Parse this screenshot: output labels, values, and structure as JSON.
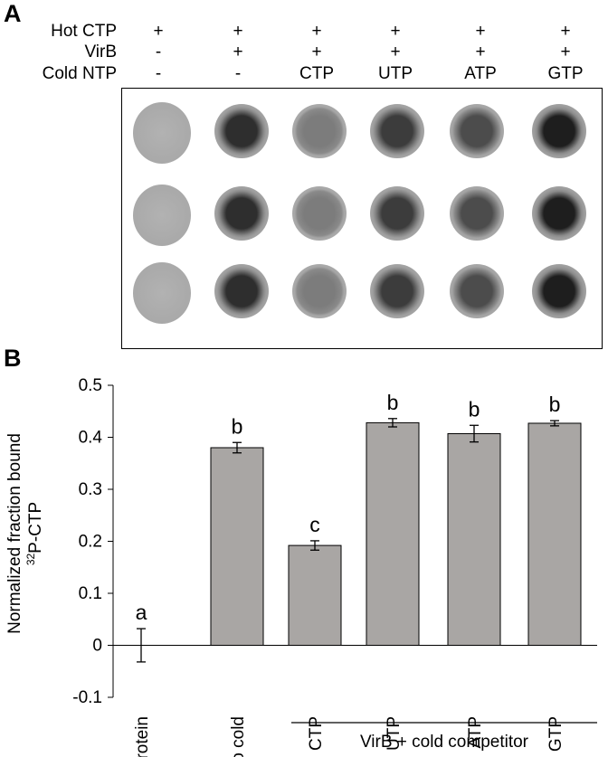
{
  "panel_a": {
    "letter": "A",
    "row_labels": [
      "Hot CTP",
      "VirB",
      "Cold NTP"
    ],
    "columns": [
      {
        "hot_ctp": "+",
        "virb": "-",
        "cold_ntp": "-"
      },
      {
        "hot_ctp": "+",
        "virb": "+",
        "cold_ntp": "-"
      },
      {
        "hot_ctp": "+",
        "virb": "+",
        "cold_ntp": "CTP"
      },
      {
        "hot_ctp": "+",
        "virb": "+",
        "cold_ntp": "UTP"
      },
      {
        "hot_ctp": "+",
        "virb": "+",
        "cold_ntp": "ATP"
      },
      {
        "hot_ctp": "+",
        "virb": "+",
        "cold_ntp": "GTP"
      }
    ]
  },
  "panel_b": {
    "letter": "B"
  },
  "chart_data": {
    "type": "bar",
    "title": "",
    "xlabel": "",
    "ylabel_line1": "Normalized fraction bound",
    "ylabel_line2_sup": "32",
    "ylabel_line2_rest": "P-CTP",
    "categories": [
      "no protein",
      "no cold",
      "CTP",
      "UTP",
      "ATP",
      "GTP"
    ],
    "values": [
      0.0,
      0.38,
      0.192,
      0.428,
      0.407,
      0.427
    ],
    "errors": [
      0.032,
      0.01,
      0.009,
      0.008,
      0.016,
      0.005
    ],
    "significance_letters": [
      "a",
      "b",
      "c",
      "b",
      "b",
      "b"
    ],
    "ylim": [
      -0.1,
      0.5
    ],
    "yticks": [
      "-0.1",
      "0",
      "0.1",
      "0.2",
      "0.3",
      "0.4",
      "0.5"
    ],
    "group_label": "VirB + cold competitor",
    "bar_color": "#a9a6a4",
    "grid": false
  }
}
